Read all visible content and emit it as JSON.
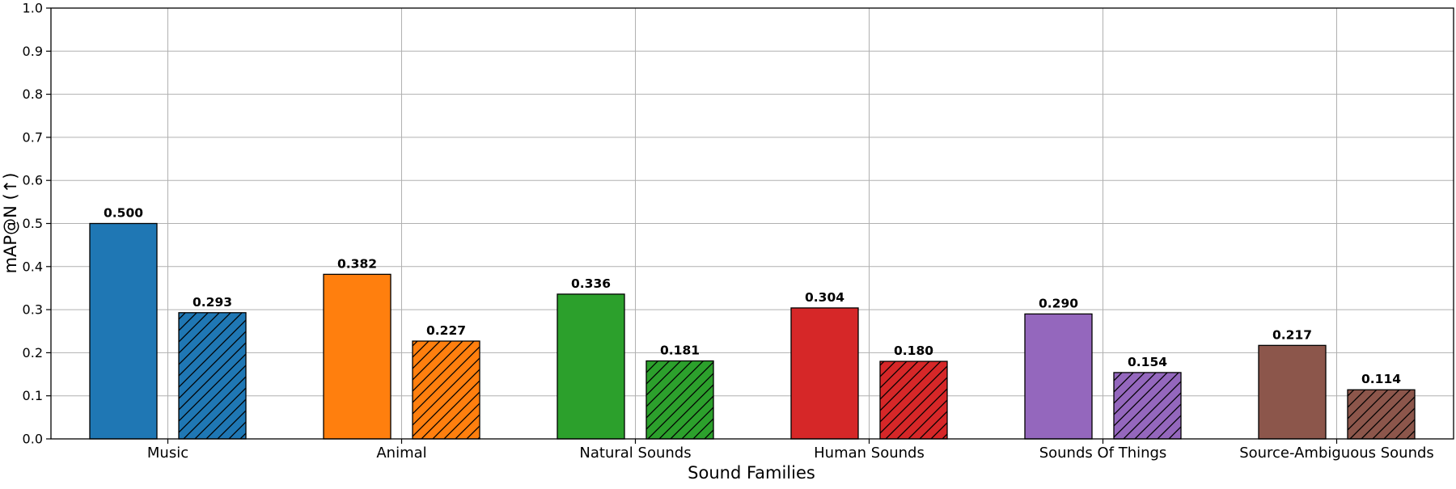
{
  "chart_data": {
    "type": "bar",
    "xlabel": "Sound Families",
    "ylabel": "mAP@N (↑)",
    "ylim": [
      0,
      1.0
    ],
    "yticks": [
      "0.0",
      "0.1",
      "0.2",
      "0.3",
      "0.4",
      "0.5",
      "0.6",
      "0.7",
      "0.8",
      "0.9",
      "1.0"
    ],
    "grid": true,
    "categories": [
      "Music",
      "Animal",
      "Natural Sounds",
      "Human Sounds",
      "Sounds Of Things",
      "Source-Ambiguous Sounds"
    ],
    "category_colors": [
      "#1f77b4",
      "#ff7f0e",
      "#2ca02c",
      "#d62728",
      "#9467bd",
      "#8c564b"
    ],
    "series": [
      {
        "style": "solid",
        "values": [
          0.5,
          0.382,
          0.336,
          0.304,
          0.29,
          0.217
        ],
        "labels": [
          "0.500",
          "0.382",
          "0.336",
          "0.304",
          "0.290",
          "0.217"
        ]
      },
      {
        "style": "hatched",
        "values": [
          0.293,
          0.227,
          0.181,
          0.18,
          0.154,
          0.114
        ],
        "labels": [
          "0.293",
          "0.227",
          "0.181",
          "0.180",
          "0.154",
          "0.114"
        ]
      }
    ]
  }
}
